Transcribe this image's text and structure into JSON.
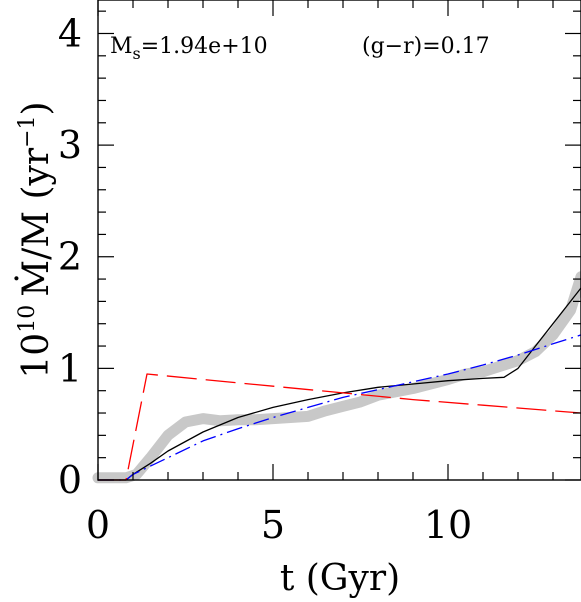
{
  "chart_data": {
    "type": "line",
    "xlabel": "t (Gyr)",
    "ylabel_prefix": "10",
    "ylabel_exponent": "10",
    "ylabel_main": "Ṁ/M (yr",
    "ylabel_exp2": "−1",
    "ylabel_suffix": ")",
    "xlim": [
      0,
      13.8
    ],
    "ylim": [
      0,
      4.3
    ],
    "x_ticks": [
      "0",
      "5",
      "10"
    ],
    "x_tick_values": [
      0,
      5,
      10
    ],
    "y_ticks": [
      "0",
      "1",
      "2",
      "3",
      "4"
    ],
    "y_tick_values": [
      0,
      1,
      2,
      3,
      4
    ],
    "annotations": {
      "mass_symbol": "M",
      "mass_sub": "s",
      "mass_value": "=1.94e+10",
      "color": "(g−r)=0.17"
    },
    "grid": false,
    "series": [
      {
        "color": "#c8c8c8",
        "style": "thick",
        "x": [
          0.0,
          0.8,
          1.1,
          1.5,
          2.0,
          2.5,
          3.0,
          3.5,
          4.0,
          4.5,
          5.0,
          5.5,
          6.0,
          6.5,
          7.0,
          7.5,
          8.0,
          8.5,
          9.0,
          9.5,
          10.0,
          10.5,
          11.0,
          11.5,
          12.0,
          12.5,
          13.0,
          13.5,
          13.8
        ],
        "y": [
          0.02,
          0.02,
          0.05,
          0.2,
          0.4,
          0.52,
          0.55,
          0.53,
          0.54,
          0.54,
          0.55,
          0.56,
          0.57,
          0.62,
          0.66,
          0.7,
          0.76,
          0.79,
          0.82,
          0.86,
          0.9,
          0.95,
          0.97,
          1.02,
          1.07,
          1.15,
          1.3,
          1.52,
          1.82
        ]
      },
      {
        "color": "#000000",
        "style": "solid",
        "x": [
          0.0,
          0.8,
          1.0,
          1.5,
          2.0,
          3.0,
          4.0,
          5.0,
          6.0,
          7.0,
          8.0,
          9.0,
          10.0,
          11.0,
          11.6,
          12.0,
          12.5,
          13.0,
          13.5,
          13.8
        ],
        "y": [
          0.0,
          0.0,
          0.05,
          0.15,
          0.26,
          0.43,
          0.56,
          0.65,
          0.72,
          0.78,
          0.83,
          0.86,
          0.89,
          0.91,
          0.92,
          1.0,
          1.2,
          1.4,
          1.6,
          1.72
        ]
      },
      {
        "color": "#0000ff",
        "style": "dashdot",
        "x": [
          0.0,
          0.8,
          1.0,
          2.0,
          3.0,
          4.0,
          5.0,
          6.0,
          7.0,
          8.0,
          9.0,
          10.0,
          11.0,
          12.0,
          13.0,
          13.8
        ],
        "y": [
          0.0,
          0.0,
          0.05,
          0.2,
          0.35,
          0.46,
          0.56,
          0.65,
          0.74,
          0.81,
          0.88,
          0.95,
          1.03,
          1.12,
          1.22,
          1.3
        ]
      },
      {
        "color": "#ff0000",
        "style": "longdash",
        "x": [
          0.0,
          0.8,
          1.4,
          3.0,
          5.0,
          7.0,
          9.0,
          11.0,
          13.0,
          13.8
        ],
        "y": [
          0.0,
          0.0,
          0.95,
          0.9,
          0.84,
          0.78,
          0.72,
          0.67,
          0.62,
          0.6
        ]
      }
    ]
  }
}
